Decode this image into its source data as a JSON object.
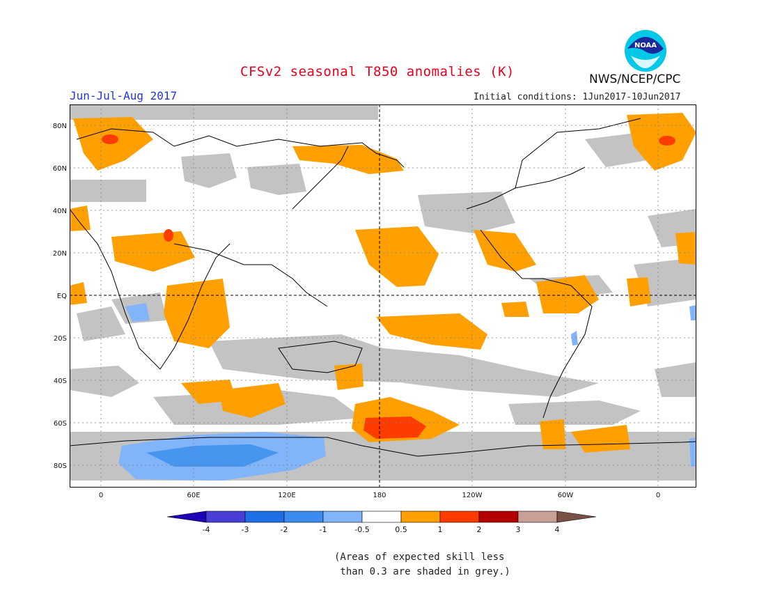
{
  "header": {
    "title": "CFSv2 seasonal T850 anomalies (K)",
    "season": "Jun-Jul-Aug 2017",
    "initial_conditions": "Initial conditions: 1Jun2017-10Jun2017",
    "agency": "NWS/NCEP/CPC",
    "logo_text": "NOAA"
  },
  "map": {
    "projection": "cylindrical, centered 180",
    "lat_labels": [
      "80N",
      "60N",
      "40N",
      "20N",
      "EQ",
      "20S",
      "40S",
      "60S",
      "80S"
    ],
    "lon_labels": [
      "0",
      "60E",
      "120E",
      "180",
      "120W",
      "60W",
      "0"
    ],
    "colors": {
      "skill_grey": "#c3c3c3",
      "pos_05_1": "#ffa000",
      "pos_1_2": "#ff3c00",
      "neg_05_1": "#82b4fa",
      "neg_1_2": "#4696f0"
    }
  },
  "colorbar": {
    "labels": [
      "-4",
      "-3",
      "-2",
      "-1",
      "-0.5",
      "0.5",
      "1",
      "2",
      "3",
      "4"
    ],
    "colors": [
      "#1e00b4",
      "#4a3ed8",
      "#1e6ee6",
      "#3c8cf0",
      "#82b4fa",
      "#ffffff",
      "#ffa000",
      "#ff3c00",
      "#b40000",
      "#c8a096",
      "#785046"
    ]
  },
  "note": "(Areas of expected skill less\n than 0.3 are shaded in grey.)"
}
